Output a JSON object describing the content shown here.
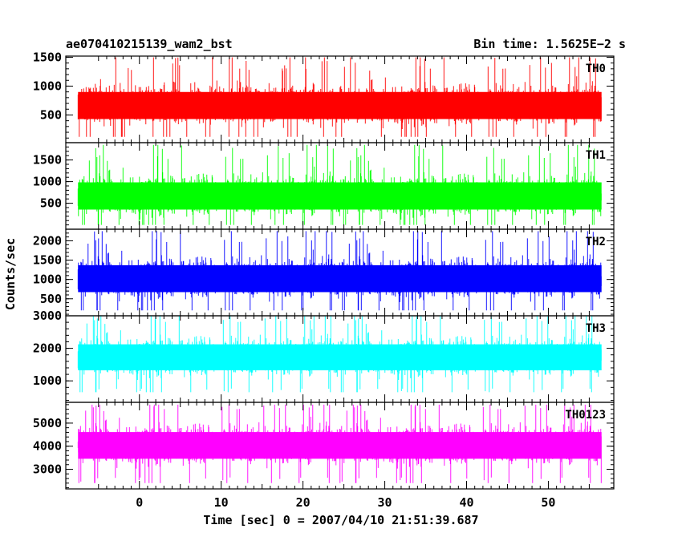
{
  "header": {
    "title": "ae070410215139_wam2_bst",
    "bin_time": "Bin time: 1.5625E−2 s"
  },
  "axes": {
    "xlabel": "Time [sec] 0 = 2007/04/10 21:51:39.687",
    "ylabel": "Counts/sec"
  },
  "chart_data": {
    "type": "line",
    "title": "ae070410215139_wam2_bst",
    "subtitle": "Bin time: 1.5625E−2 s",
    "xlabel": "Time [sec] 0 = 2007/04/10 21:51:39.687",
    "ylabel": "Counts/sec",
    "xlim": [
      -9,
      58
    ],
    "x_range": [
      -7.5,
      56.5
    ],
    "bin_time": 0.015625,
    "x_ticks": [
      0,
      10,
      20,
      30,
      40,
      50
    ],
    "grid": false,
    "panels": [
      {
        "name": "TH0",
        "color": "#ff0000",
        "ylim": [
          20,
          1520
        ],
        "y_ticks": [
          500,
          1000,
          1500
        ],
        "baseline": 650,
        "low": 120,
        "high": 1500
      },
      {
        "name": "TH1",
        "color": "#00ff00",
        "ylim": [
          -100,
          1900
        ],
        "y_ticks": [
          500,
          1000,
          1500
        ],
        "baseline": 650,
        "low": 0,
        "high": 1850
      },
      {
        "name": "TH2",
        "color": "#0000ff",
        "ylim": [
          60,
          2300
        ],
        "y_ticks": [
          500,
          1000,
          1500,
          2000
        ],
        "baseline": 1000,
        "low": 200,
        "high": 2250
      },
      {
        "name": "TH3",
        "color": "#00ffff",
        "ylim": [
          340,
          3000
        ],
        "y_ticks": [
          1000,
          2000,
          3000
        ],
        "baseline": 1700,
        "low": 650,
        "high": 3000
      },
      {
        "name": "TH0123",
        "color": "#ff00ff",
        "ylim": [
          2150,
          5900
        ],
        "y_ticks": [
          3000,
          4000,
          5000
        ],
        "baseline": 4000,
        "low": 2400,
        "high": 5800
      }
    ]
  }
}
